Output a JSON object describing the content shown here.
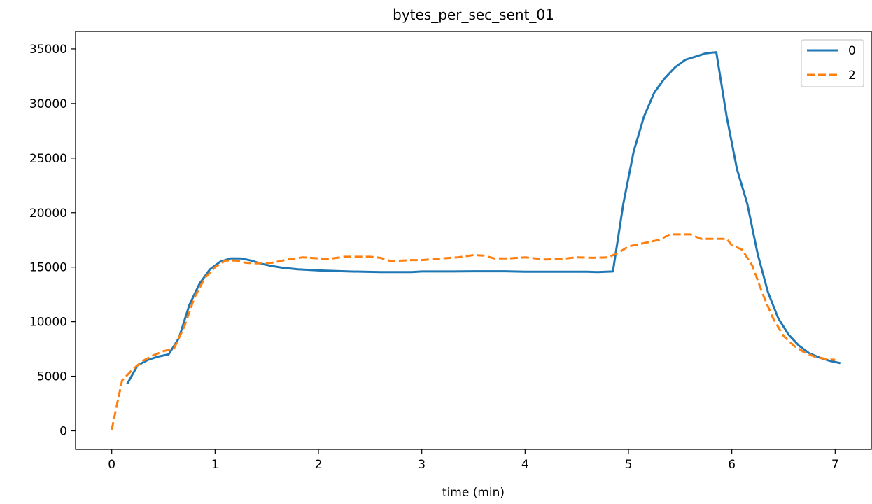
{
  "chart_data": {
    "type": "line",
    "title": "bytes_per_sec_sent_01",
    "xlabel": "time (min)",
    "ylabel": "",
    "xlim": [
      -0.35,
      7.35
    ],
    "ylim": [
      -1700,
      36600
    ],
    "xticks": [
      0,
      1,
      2,
      3,
      4,
      5,
      6,
      7
    ],
    "yticks": [
      0,
      5000,
      10000,
      15000,
      20000,
      25000,
      30000,
      35000
    ],
    "grid": false,
    "legend_position": "top-right",
    "series": [
      {
        "name": "0",
        "color": "#1f77b4",
        "style": "solid",
        "points": [
          [
            0.15,
            4300
          ],
          [
            0.25,
            6000
          ],
          [
            0.35,
            6500
          ],
          [
            0.45,
            6800
          ],
          [
            0.55,
            7000
          ],
          [
            0.65,
            8500
          ],
          [
            0.75,
            11500
          ],
          [
            0.85,
            13500
          ],
          [
            0.95,
            14800
          ],
          [
            1.05,
            15500
          ],
          [
            1.15,
            15800
          ],
          [
            1.25,
            15800
          ],
          [
            1.35,
            15600
          ],
          [
            1.45,
            15300
          ],
          [
            1.55,
            15100
          ],
          [
            1.65,
            14950
          ],
          [
            1.8,
            14800
          ],
          [
            2.0,
            14700
          ],
          [
            2.3,
            14600
          ],
          [
            2.6,
            14550
          ],
          [
            2.9,
            14550
          ],
          [
            3.0,
            14600
          ],
          [
            3.3,
            14600
          ],
          [
            3.5,
            14620
          ],
          [
            3.8,
            14620
          ],
          [
            4.0,
            14580
          ],
          [
            4.3,
            14580
          ],
          [
            4.6,
            14580
          ],
          [
            4.7,
            14550
          ],
          [
            4.85,
            14600
          ],
          [
            4.95,
            20800
          ],
          [
            5.05,
            25600
          ],
          [
            5.15,
            28800
          ],
          [
            5.25,
            31000
          ],
          [
            5.35,
            32300
          ],
          [
            5.45,
            33300
          ],
          [
            5.55,
            34000
          ],
          [
            5.65,
            34300
          ],
          [
            5.75,
            34600
          ],
          [
            5.85,
            34700
          ],
          [
            5.95,
            28800
          ],
          [
            6.05,
            24000
          ],
          [
            6.15,
            20800
          ],
          [
            6.25,
            16200
          ],
          [
            6.35,
            12700
          ],
          [
            6.45,
            10300
          ],
          [
            6.55,
            8800
          ],
          [
            6.65,
            7800
          ],
          [
            6.75,
            7100
          ],
          [
            6.85,
            6700
          ],
          [
            6.95,
            6400
          ],
          [
            7.05,
            6200
          ]
        ]
      },
      {
        "name": "2",
        "color": "#ff7f0e",
        "style": "dashed",
        "points": [
          [
            0.0,
            100
          ],
          [
            0.1,
            4600
          ],
          [
            0.2,
            5600
          ],
          [
            0.3,
            6400
          ],
          [
            0.4,
            6900
          ],
          [
            0.5,
            7300
          ],
          [
            0.6,
            7500
          ],
          [
            0.7,
            9500
          ],
          [
            0.8,
            12200
          ],
          [
            0.9,
            14000
          ],
          [
            1.0,
            15000
          ],
          [
            1.1,
            15600
          ],
          [
            1.2,
            15600
          ],
          [
            1.3,
            15400
          ],
          [
            1.4,
            15350
          ],
          [
            1.55,
            15400
          ],
          [
            1.7,
            15700
          ],
          [
            1.85,
            15900
          ],
          [
            2.0,
            15800
          ],
          [
            2.1,
            15750
          ],
          [
            2.25,
            15950
          ],
          [
            2.5,
            15950
          ],
          [
            2.6,
            15850
          ],
          [
            2.7,
            15550
          ],
          [
            2.9,
            15650
          ],
          [
            3.0,
            15650
          ],
          [
            3.2,
            15800
          ],
          [
            3.35,
            15900
          ],
          [
            3.5,
            16100
          ],
          [
            3.6,
            16050
          ],
          [
            3.7,
            15800
          ],
          [
            3.85,
            15800
          ],
          [
            4.0,
            15900
          ],
          [
            4.2,
            15700
          ],
          [
            4.35,
            15750
          ],
          [
            4.5,
            15900
          ],
          [
            4.65,
            15850
          ],
          [
            4.8,
            15900
          ],
          [
            4.9,
            16300
          ],
          [
            5.0,
            16900
          ],
          [
            5.1,
            17100
          ],
          [
            5.2,
            17300
          ],
          [
            5.3,
            17500
          ],
          [
            5.4,
            18000
          ],
          [
            5.5,
            18000
          ],
          [
            5.6,
            18000
          ],
          [
            5.7,
            17600
          ],
          [
            5.85,
            17600
          ],
          [
            5.95,
            17600
          ],
          [
            6.0,
            17000
          ],
          [
            6.1,
            16600
          ],
          [
            6.2,
            15100
          ],
          [
            6.3,
            12500
          ],
          [
            6.4,
            10300
          ],
          [
            6.5,
            8700
          ],
          [
            6.6,
            7800
          ],
          [
            6.7,
            7200
          ],
          [
            6.8,
            6800
          ],
          [
            6.9,
            6600
          ],
          [
            7.0,
            6500
          ]
        ]
      }
    ]
  }
}
